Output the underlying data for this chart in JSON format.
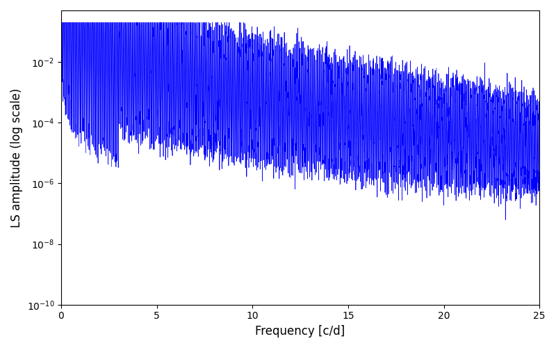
{
  "title": "",
  "xlabel": "Frequency [c/d]",
  "ylabel": "LS amplitude (log scale)",
  "line_color": "#0000ff",
  "line_width": 0.5,
  "xlim": [
    0,
    25
  ],
  "ylim": [
    1e-10,
    0.5
  ],
  "background_color": "#ffffff",
  "figsize": [
    8.0,
    5.0
  ],
  "dpi": 100,
  "freq_max": 25.0,
  "n_points": 8000,
  "seed": 12345
}
